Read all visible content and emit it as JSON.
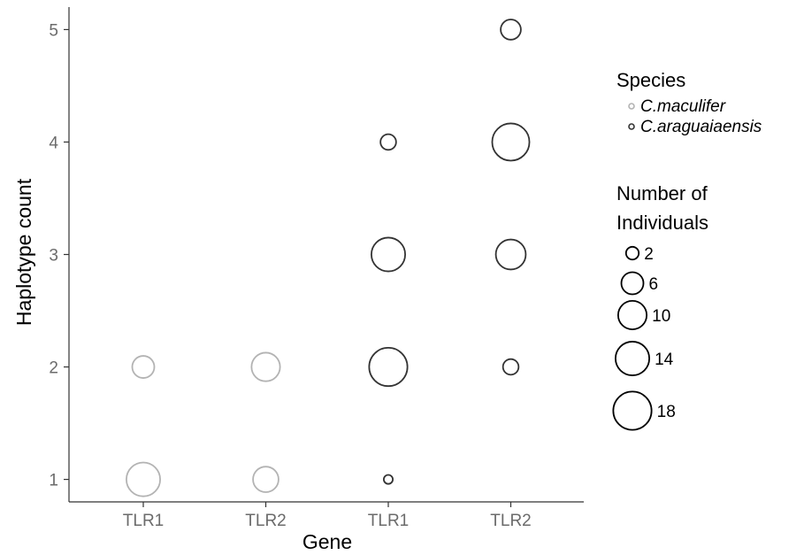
{
  "chart_data": {
    "type": "scatter",
    "xlabel": "Gene",
    "ylabel": "Haplotype count",
    "categories": [
      "TLR1",
      "TLR2",
      "TLR1",
      "TLR2"
    ],
    "yticks": [
      1,
      2,
      3,
      4,
      5
    ],
    "ylim": [
      0.8,
      5.2
    ],
    "grid": false,
    "legend_placement": "right",
    "series": [
      {
        "name": "C.maculifer",
        "color": "#b3b3b3",
        "points": [
          {
            "x": 0,
            "y": 1,
            "size": 14
          },
          {
            "x": 0,
            "y": 2,
            "size": 6
          },
          {
            "x": 1,
            "y": 1,
            "size": 8
          },
          {
            "x": 1,
            "y": 2,
            "size": 10
          }
        ]
      },
      {
        "name": "C.araguaiaensis",
        "color": "#333333",
        "points": [
          {
            "x": 2,
            "y": 1,
            "size": 1
          },
          {
            "x": 2,
            "y": 2,
            "size": 18
          },
          {
            "x": 2,
            "y": 3,
            "size": 14
          },
          {
            "x": 2,
            "y": 4,
            "size": 3
          },
          {
            "x": 3,
            "y": 2,
            "size": 3
          },
          {
            "x": 3,
            "y": 3,
            "size": 11
          },
          {
            "x": 3,
            "y": 4,
            "size": 17
          },
          {
            "x": 3,
            "y": 5,
            "size": 5
          }
        ]
      }
    ],
    "legend": {
      "species_title": "Species",
      "size_title_line1": "Number of",
      "size_title_line2": "Individuals",
      "size_breaks": [
        2,
        6,
        10,
        14,
        18
      ]
    }
  }
}
